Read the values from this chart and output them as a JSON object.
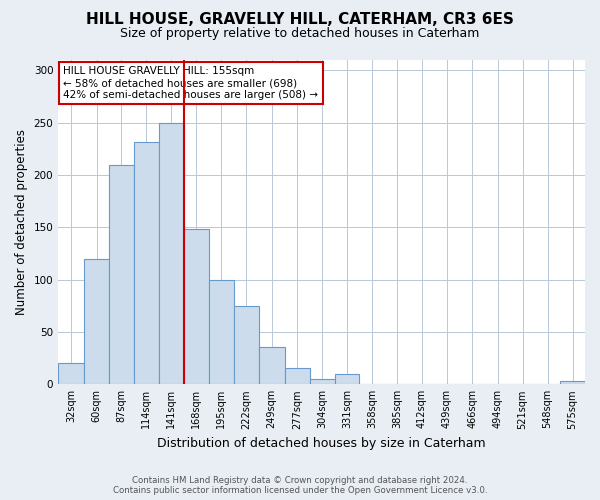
{
  "title": "HILL HOUSE, GRAVELLY HILL, CATERHAM, CR3 6ES",
  "subtitle": "Size of property relative to detached houses in Caterham",
  "xlabel": "Distribution of detached houses by size in Caterham",
  "ylabel": "Number of detached properties",
  "bar_color": "#ccdcec",
  "bar_edge_color": "#6699cc",
  "categories": [
    "32sqm",
    "60sqm",
    "87sqm",
    "114sqm",
    "141sqm",
    "168sqm",
    "195sqm",
    "222sqm",
    "249sqm",
    "277sqm",
    "304sqm",
    "331sqm",
    "358sqm",
    "385sqm",
    "412sqm",
    "439sqm",
    "466sqm",
    "494sqm",
    "521sqm",
    "548sqm",
    "575sqm"
  ],
  "values": [
    20,
    120,
    210,
    232,
    250,
    148,
    100,
    75,
    36,
    16,
    5,
    10,
    0,
    0,
    0,
    0,
    0,
    0,
    0,
    0,
    3
  ],
  "ylim": [
    0,
    310
  ],
  "yticks": [
    0,
    50,
    100,
    150,
    200,
    250,
    300
  ],
  "vline_x_index": 4,
  "annotation_title": "HILL HOUSE GRAVELLY HILL: 155sqm",
  "annotation_line1": "← 58% of detached houses are smaller (698)",
  "annotation_line2": "42% of semi-detached houses are larger (508) →",
  "footer1": "Contains HM Land Registry data © Crown copyright and database right 2024.",
  "footer2": "Contains public sector information licensed under the Open Government Licence v3.0.",
  "background_color": "#e8eef4",
  "plot_bg_color": "#ffffff",
  "vline_color": "#cc0000",
  "annotation_box_color": "#ffffff",
  "annotation_box_edge_color": "#cc0000",
  "grid_color": "#b8c8d8",
  "title_fontsize": 11,
  "subtitle_fontsize": 9,
  "tick_fontsize": 7,
  "ylabel_fontsize": 8.5,
  "xlabel_fontsize": 9
}
